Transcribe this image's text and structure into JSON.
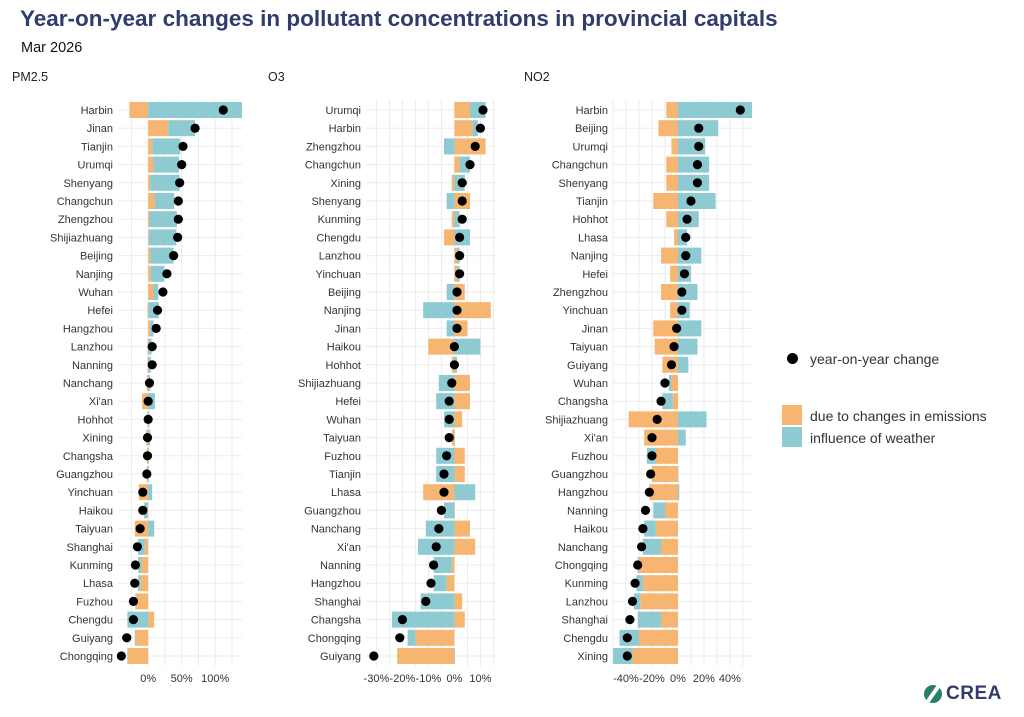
{
  "header": {
    "title": "Year-on-year changes in pollutant concentrations in provincial capitals",
    "subtitle": "Mar 2026"
  },
  "legend": {
    "dot_label": "year-on-year change",
    "emissions_label": "due to changes in emissions",
    "weather_label": "influence of weather"
  },
  "brand": {
    "name": "CREA"
  },
  "colors": {
    "emissions": "#f6b570",
    "weather": "#8ecad2",
    "dot": "#000000",
    "grid": "#ebebeb"
  },
  "chart_data": [
    {
      "type": "bar",
      "title": "PM2.5",
      "xlim": [
        -0.45,
        1.4
      ],
      "ticks": [
        0,
        0.5,
        1.0
      ],
      "tick_labels": [
        "0%",
        "50%",
        "100%"
      ],
      "categories": [
        "Harbin",
        "Jinan",
        "Tianjin",
        "Urumqi",
        "Shenyang",
        "Changchun",
        "Zhengzhou",
        "Shijiazhuang",
        "Beijing",
        "Nanjing",
        "Wuhan",
        "Hefei",
        "Hangzhou",
        "Lanzhou",
        "Nanning",
        "Nanchang",
        "Xi'an",
        "Hohhot",
        "Xining",
        "Changsha",
        "Guangzhou",
        "Yinchuan",
        "Haikou",
        "Taiyuan",
        "Shanghai",
        "Kunming",
        "Lhasa",
        "Fuzhou",
        "Chengdu",
        "Guiyang",
        "Chongqing"
      ],
      "series": [
        {
          "name": "due to changes in emissions",
          "values": [
            -0.28,
            0.3,
            0.06,
            0.08,
            0.03,
            0.1,
            0.02,
            0.01,
            0.03,
            0.04,
            0.08,
            -0.01,
            0.03,
            -0.01,
            -0.01,
            -0.02,
            -0.09,
            -0.01,
            -0.03,
            -0.02,
            -0.02,
            -0.14,
            -0.01,
            -0.2,
            -0.05,
            -0.1,
            -0.11,
            -0.18,
            0.09,
            -0.19,
            -0.3
          ]
        },
        {
          "name": "influence of weather",
          "values": [
            1.4,
            0.4,
            0.42,
            0.38,
            0.44,
            0.29,
            0.41,
            0.41,
            0.35,
            0.2,
            0.07,
            0.16,
            0.05,
            0.05,
            0.04,
            0.03,
            0.1,
            0.02,
            0.03,
            0.01,
            0.01,
            0.06,
            -0.05,
            0.09,
            -0.1,
            -0.05,
            -0.04,
            -0.01,
            -0.31,
            -0.01,
            -0.01
          ]
        },
        {
          "name": "year-on-year change",
          "values": [
            1.12,
            0.7,
            0.52,
            0.5,
            0.47,
            0.45,
            0.45,
            0.44,
            0.38,
            0.28,
            0.22,
            0.14,
            0.12,
            0.06,
            0.06,
            0.02,
            0.0,
            0.0,
            -0.01,
            -0.01,
            -0.02,
            -0.08,
            -0.08,
            -0.12,
            -0.16,
            -0.19,
            -0.2,
            -0.22,
            -0.22,
            -0.32,
            -0.4
          ]
        }
      ]
    },
    {
      "type": "bar",
      "title": "O3",
      "xlim": [
        -0.34,
        0.16
      ],
      "ticks": [
        -0.3,
        -0.2,
        -0.1,
        0,
        0.1
      ],
      "tick_labels": [
        "-30%",
        "-20%",
        "-10%",
        "0%",
        "10%"
      ],
      "categories": [
        "Urumqi",
        "Harbin",
        "Zhengzhou",
        "Changchun",
        "Xining",
        "Shenyang",
        "Kunming",
        "Chengdu",
        "Lanzhou",
        "Yinchuan",
        "Beijing",
        "Nanjing",
        "Jinan",
        "Haikou",
        "Hohhot",
        "Shijiazhuang",
        "Hefei",
        "Wuhan",
        "Taiyuan",
        "Fuzhou",
        "Tianjin",
        "Lhasa",
        "Guangzhou",
        "Nanchang",
        "Xi'an",
        "Nanning",
        "Hangzhou",
        "Shanghai",
        "Changsha",
        "Chongqing",
        "Guiyang"
      ],
      "series": [
        {
          "name": "due to changes in emissions",
          "values": [
            0.06,
            0.07,
            0.12,
            0.02,
            -0.01,
            0.06,
            -0.01,
            -0.04,
            0.01,
            0.01,
            0.04,
            0.14,
            0.05,
            -0.1,
            -0.01,
            0.06,
            0.06,
            0.03,
            -0.01,
            0.04,
            0.04,
            -0.12,
            0.0,
            0.06,
            0.08,
            -0.01,
            -0.03,
            0.03,
            0.04,
            -0.15,
            -0.22
          ]
        },
        {
          "name": "influence of weather",
          "values": [
            0.06,
            0.02,
            -0.04,
            0.04,
            0.04,
            -0.03,
            0.02,
            0.06,
            0.01,
            0.01,
            -0.03,
            -0.12,
            -0.03,
            0.1,
            0.01,
            -0.06,
            -0.07,
            -0.04,
            0.0,
            -0.07,
            -0.07,
            0.08,
            -0.04,
            -0.11,
            -0.14,
            -0.07,
            -0.05,
            -0.13,
            -0.24,
            -0.03,
            0.0
          ]
        },
        {
          "name": "year-on-year change",
          "values": [
            0.11,
            0.1,
            0.08,
            0.06,
            0.03,
            0.03,
            0.03,
            0.02,
            0.02,
            0.02,
            0.01,
            0.01,
            0.01,
            0.0,
            0.0,
            -0.01,
            -0.02,
            -0.02,
            -0.02,
            -0.03,
            -0.04,
            -0.04,
            -0.05,
            -0.06,
            -0.07,
            -0.08,
            -0.09,
            -0.11,
            -0.2,
            -0.21,
            -0.31
          ]
        }
      ]
    },
    {
      "type": "bar",
      "title": "NO2",
      "xlim": [
        -0.5,
        0.57
      ],
      "ticks": [
        -0.4,
        -0.2,
        0,
        0.2,
        0.4
      ],
      "tick_labels": [
        "-40%",
        "-20%",
        "0%",
        "20%",
        "40%"
      ],
      "categories": [
        "Harbin",
        "Beijing",
        "Urumqi",
        "Changchun",
        "Shenyang",
        "Tianjin",
        "Hohhot",
        "Lhasa",
        "Nanjing",
        "Hefei",
        "Zhengzhou",
        "Yinchuan",
        "Jinan",
        "Taiyuan",
        "Guiyang",
        "Wuhan",
        "Changsha",
        "Shijiazhuang",
        "Xi'an",
        "Fuzhou",
        "Guangzhou",
        "Hangzhou",
        "Nanning",
        "Haikou",
        "Nanchang",
        "Chongqing",
        "Kunming",
        "Lanzhou",
        "Shanghai",
        "Chengdu",
        "Xining"
      ],
      "series": [
        {
          "name": "due to changes in emissions",
          "values": [
            -0.09,
            -0.15,
            -0.05,
            -0.09,
            -0.09,
            -0.19,
            -0.09,
            -0.03,
            -0.13,
            -0.06,
            -0.13,
            -0.06,
            -0.19,
            -0.18,
            -0.12,
            -0.05,
            -0.04,
            -0.38,
            -0.26,
            -0.17,
            -0.2,
            -0.22,
            -0.1,
            -0.17,
            -0.13,
            -0.3,
            -0.27,
            -0.29,
            -0.13,
            -0.3,
            -0.35
          ]
        },
        {
          "name": "influence of weather",
          "values": [
            0.57,
            0.31,
            0.21,
            0.24,
            0.24,
            0.29,
            0.16,
            0.07,
            0.18,
            0.1,
            0.15,
            0.09,
            0.18,
            0.15,
            0.08,
            -0.02,
            -0.08,
            0.22,
            0.06,
            -0.07,
            0.0,
            0.01,
            -0.09,
            -0.09,
            -0.14,
            -0.01,
            -0.05,
            -0.05,
            -0.18,
            -0.15,
            -0.15
          ]
        },
        {
          "name": "year-on-year change",
          "values": [
            0.48,
            0.16,
            0.16,
            0.15,
            0.15,
            0.1,
            0.07,
            0.06,
            0.06,
            0.05,
            0.03,
            0.03,
            -0.01,
            -0.03,
            -0.05,
            -0.1,
            -0.13,
            -0.16,
            -0.2,
            -0.2,
            -0.21,
            -0.22,
            -0.25,
            -0.27,
            -0.28,
            -0.31,
            -0.33,
            -0.35,
            -0.37,
            -0.39,
            -0.39
          ]
        }
      ]
    }
  ]
}
